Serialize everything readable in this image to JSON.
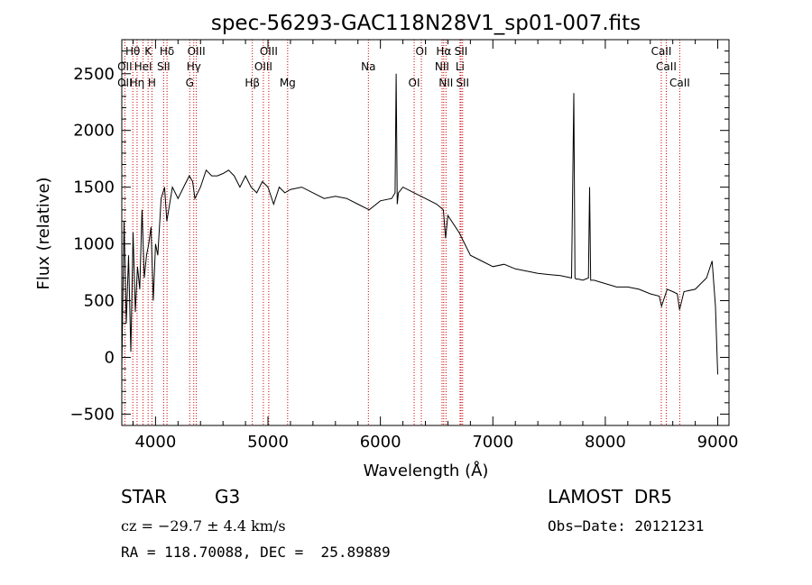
{
  "chart_data": {
    "type": "line",
    "title": "spec-56293-GAC118N28V1_sp01-007.fits",
    "xlabel": "Wavelength (Å)",
    "ylabel": "Flux (relative)",
    "xlim": [
      3700,
      9100
    ],
    "ylim": [
      -600,
      2800
    ],
    "xticks": [
      4000,
      5000,
      6000,
      7000,
      8000,
      9000
    ],
    "xtick_labels": [
      "4000",
      "5000",
      "6000",
      "7000",
      "8000",
      "9000"
    ],
    "yticks": [
      -500,
      0,
      500,
      1000,
      1500,
      2000,
      2500
    ],
    "ytick_labels": [
      "−500",
      "0",
      "500",
      "1000",
      "1500",
      "2000",
      "2500"
    ],
    "grid": false,
    "series_color": "#000000",
    "line_marker_color": "#cc0000",
    "spectrum": {
      "x": [
        3700,
        3720,
        3740,
        3760,
        3780,
        3800,
        3820,
        3840,
        3860,
        3880,
        3900,
        3920,
        3940,
        3960,
        3980,
        4000,
        4020,
        4050,
        4080,
        4100,
        4150,
        4200,
        4250,
        4300,
        4330,
        4350,
        4400,
        4450,
        4500,
        4550,
        4600,
        4650,
        4700,
        4750,
        4800,
        4850,
        4900,
        4950,
        5000,
        5050,
        5100,
        5150,
        5200,
        5300,
        5400,
        5500,
        5600,
        5700,
        5800,
        5900,
        6000,
        6100,
        6130,
        6140,
        6150,
        6160,
        6200,
        6300,
        6400,
        6500,
        6560,
        6580,
        6600,
        6700,
        6800,
        6900,
        7000,
        7100,
        7200,
        7300,
        7400,
        7500,
        7600,
        7700,
        7720,
        7730,
        7740,
        7760,
        7800,
        7850,
        7860,
        7870,
        7900,
        8000,
        8100,
        8200,
        8300,
        8400,
        8480,
        8500,
        8550,
        8600,
        8640,
        8660,
        8700,
        8800,
        8850,
        8900,
        8950,
        8980,
        9000
      ],
      "y": [
        -100,
        1200,
        300,
        900,
        50,
        1100,
        400,
        800,
        600,
        1300,
        700,
        900,
        1000,
        1150,
        500,
        1000,
        900,
        1400,
        1500,
        1200,
        1500,
        1400,
        1500,
        1600,
        1550,
        1400,
        1500,
        1650,
        1600,
        1600,
        1620,
        1650,
        1600,
        1500,
        1600,
        1500,
        1450,
        1550,
        1500,
        1350,
        1500,
        1450,
        1480,
        1500,
        1450,
        1400,
        1420,
        1400,
        1350,
        1300,
        1380,
        1400,
        1450,
        2500,
        1350,
        1450,
        1500,
        1450,
        1400,
        1350,
        1300,
        1050,
        1250,
        1100,
        900,
        850,
        800,
        820,
        780,
        760,
        740,
        730,
        720,
        700,
        2330,
        700,
        690,
        690,
        680,
        700,
        1500,
        680,
        680,
        650,
        620,
        620,
        600,
        560,
        540,
        450,
        600,
        580,
        560,
        420,
        580,
        600,
        650,
        700,
        850,
        450,
        -150
      ]
    },
    "lines_lower": [
      {
        "x": 3727,
        "label": "OII"
      },
      {
        "x": 3836,
        "label": "Hη"
      },
      {
        "x": 3968,
        "label": "H"
      },
      {
        "x": 4304,
        "label": "G"
      },
      {
        "x": 4861,
        "label": "Hβ"
      },
      {
        "x": 5175,
        "label": "Mg"
      },
      {
        "x": 6300,
        "label": "OI"
      },
      {
        "x": 6583,
        "label": "NII"
      },
      {
        "x": 6731,
        "label": "SII"
      },
      {
        "x": 8662,
        "label": "CaII"
      }
    ],
    "lines_middle": [
      {
        "x": 3727,
        "label": "OII"
      },
      {
        "x": 3889,
        "label": "HeI"
      },
      {
        "x": 4072,
        "label": "SII"
      },
      {
        "x": 4340,
        "label": "Hγ"
      },
      {
        "x": 4959,
        "label": "OIII"
      },
      {
        "x": 5893,
        "label": "Na"
      },
      {
        "x": 6548,
        "label": "NII"
      },
      {
        "x": 6708,
        "label": "Li"
      },
      {
        "x": 8542,
        "label": "CaII"
      }
    ],
    "lines_upper": [
      {
        "x": 3798,
        "label": "Hθ"
      },
      {
        "x": 3934,
        "label": "K"
      },
      {
        "x": 4102,
        "label": "Hδ"
      },
      {
        "x": 4363,
        "label": "OIII"
      },
      {
        "x": 5007,
        "label": "OIII"
      },
      {
        "x": 6364,
        "label": "OI"
      },
      {
        "x": 6563,
        "label": "Hα"
      },
      {
        "x": 6717,
        "label": "SII"
      },
      {
        "x": 8498,
        "label": "CaII"
      }
    ]
  },
  "info": {
    "object_class": "STAR",
    "subclass": "G3",
    "survey": "LAMOST  DR5",
    "cz": "cz = −29.7 ± 4.4 km/s",
    "obs_date": "Obs−Date: 20121231",
    "radec": "RA = 118.70088, DEC =  25.89889"
  }
}
